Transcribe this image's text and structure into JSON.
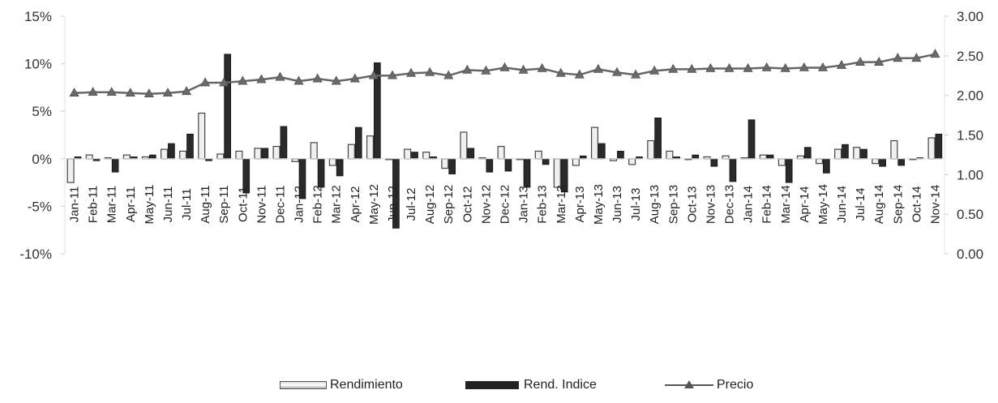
{
  "chart_data": {
    "type": "bar",
    "categories": [
      "Jan-11",
      "Feb-11",
      "Mar-11",
      "Apr-11",
      "May-11",
      "Jun-11",
      "Jul-11",
      "Aug-11",
      "Sep-11",
      "Oct-11",
      "Nov-11",
      "Dec-11",
      "Jan-12",
      "Feb-12",
      "Mar-12",
      "Apr-12",
      "May-12",
      "Jun-12",
      "Jul-12",
      "Aug-12",
      "Sep-12",
      "Oct-12",
      "Nov-12",
      "Dec-12",
      "Jan-13",
      "Feb-13",
      "Mar-13",
      "Apr-13",
      "May-13",
      "Jun-13",
      "Jul-13",
      "Aug-13",
      "Sep-13",
      "Oct-13",
      "Nov-13",
      "Dec-13",
      "Jan-14",
      "Feb-14",
      "Mar-14",
      "Apr-14",
      "May-14",
      "Jun-14",
      "Jul-14",
      "Aug-14",
      "Sep-14",
      "Oct-14",
      "Nov-14"
    ],
    "xtick_labels": [
      "Jan-11",
      "Feb-11",
      "Mar-11",
      "Apr-11",
      "May-11",
      "Jun-11",
      "Jul-11",
      "Aug-11",
      "Sep-11",
      "Oct-11",
      "Nov-11",
      "Dec-11",
      "Jan-12",
      "Feb-12",
      "Mar-12",
      "Apr-12",
      "May-12",
      "Jun-12",
      "Jul-12",
      "Aug-12",
      "Sep-12",
      "Oct-12",
      "Nov-12",
      "Dec-12",
      "Jan-13",
      "Feb-13",
      "Mar-13",
      "Apr-13",
      "May-13",
      "Jun-13",
      "Jul-13",
      "Aug-13",
      "Sep-13",
      "Oct-13",
      "Nov-13",
      "Dec-13",
      "Jan-14",
      "Feb-14",
      "Mar-14",
      "Apr-14",
      "May-14",
      "Jun-14",
      "Jul-14",
      "Aug-14",
      "Sep-14",
      "Oct-14",
      "Nov-14"
    ],
    "series": [
      {
        "name": "Rendimiento",
        "axis": "left",
        "kind": "bar",
        "color": "#f0f0f0",
        "values": [
          -2.5,
          0.4,
          0.1,
          0.4,
          0.2,
          1.0,
          0.8,
          4.8,
          0.5,
          0.8,
          1.1,
          1.3,
          -0.3,
          1.7,
          -0.7,
          1.5,
          2.4,
          0.0,
          1.0,
          0.7,
          -1.0,
          2.8,
          0.1,
          1.3,
          0.0,
          0.8,
          -3.0,
          -0.7,
          3.3,
          -0.2,
          -0.6,
          1.9,
          0.8,
          0.0,
          0.2,
          0.3,
          0.1,
          0.4,
          -0.7,
          0.3,
          -0.5,
          1.0,
          1.2,
          -0.5,
          1.9,
          0.0,
          2.2
        ]
      },
      {
        "name": "Rend. Indice",
        "axis": "left",
        "kind": "bar",
        "color": "#2a2a2a",
        "values": [
          0.2,
          -0.2,
          -1.4,
          0.2,
          0.4,
          1.6,
          2.6,
          -0.2,
          11.0,
          -3.6,
          1.1,
          3.4,
          -4.2,
          -3.0,
          -1.8,
          3.3,
          10.1,
          -7.3,
          0.7,
          0.2,
          -1.6,
          1.1,
          -1.4,
          -1.3,
          -3.0,
          -0.6,
          -3.5,
          0.3,
          1.6,
          0.8,
          0.2,
          4.3,
          0.2,
          0.4,
          -0.8,
          -2.4,
          4.1,
          0.4,
          -2.5,
          1.2,
          -1.5,
          1.5,
          1.0,
          -0.8,
          -0.7,
          0.1,
          2.6
        ]
      },
      {
        "name": "Precio",
        "axis": "right",
        "kind": "line",
        "color": "#666666",
        "values": [
          2.03,
          2.04,
          2.04,
          2.03,
          2.02,
          2.03,
          2.05,
          2.16,
          2.16,
          2.18,
          2.2,
          2.23,
          2.18,
          2.21,
          2.18,
          2.21,
          2.25,
          2.25,
          2.28,
          2.29,
          2.25,
          2.32,
          2.31,
          2.35,
          2.32,
          2.34,
          2.28,
          2.26,
          2.33,
          2.29,
          2.26,
          2.31,
          2.33,
          2.33,
          2.34,
          2.34,
          2.34,
          2.35,
          2.34,
          2.35,
          2.35,
          2.38,
          2.42,
          2.42,
          2.47,
          2.47,
          2.52
        ]
      }
    ],
    "y_left": {
      "lim": [
        -10,
        15
      ],
      "ticks": [
        "-10%",
        "-5%",
        "0%",
        "5%",
        "10%",
        "15%"
      ],
      "values": [
        -10,
        -5,
        0,
        5,
        10,
        15
      ]
    },
    "y_right": {
      "lim": [
        0,
        3
      ],
      "ticks": [
        "0.00",
        "0.50",
        "1.00",
        "1.50",
        "2.00",
        "2.50",
        "3.00"
      ],
      "values": [
        0,
        0.5,
        1,
        1.5,
        2,
        2.5,
        3
      ]
    },
    "legend": {
      "placement": "bottom",
      "items": [
        "Rendimiento",
        "Rend. Indice",
        "Precio"
      ]
    },
    "grid": false
  }
}
